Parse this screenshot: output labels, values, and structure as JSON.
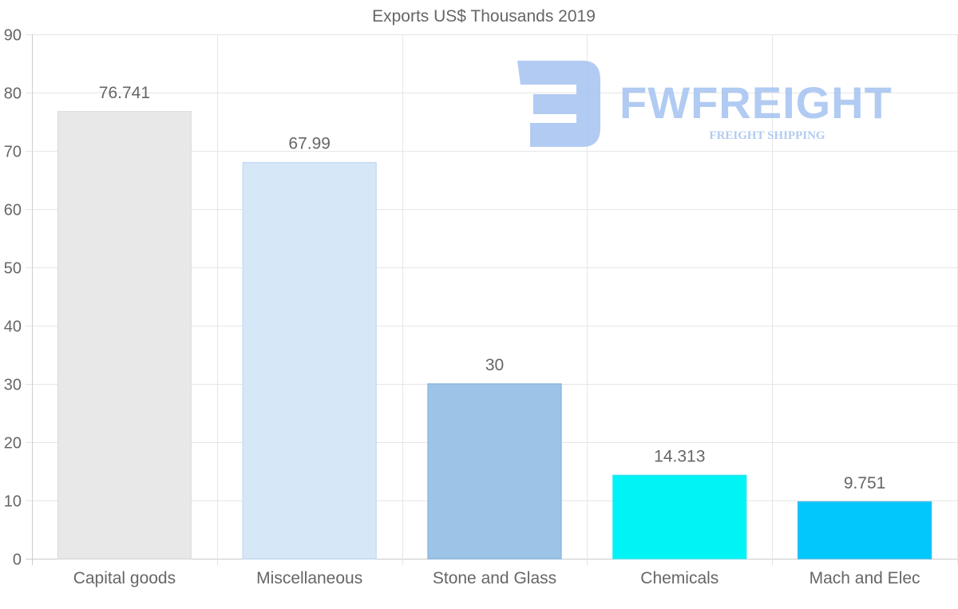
{
  "chart_data": {
    "type": "bar",
    "title": "Exports US$ Thousands 2019",
    "categories": [
      "Capital goods",
      "Miscellaneous",
      "Stone and Glass",
      "Chemicals",
      "Mach and Elec"
    ],
    "values": [
      76.741,
      67.99,
      30,
      14.313,
      9.751
    ],
    "value_labels": [
      "76.741",
      "67.99",
      "30",
      "14.313",
      "9.751"
    ],
    "colors": [
      "#e8e8e8",
      "#d6e7f8",
      "#9cc4e7",
      "#00f4f6",
      "#00c8fd"
    ],
    "border_colors": [
      "#e0e0e0",
      "#c7ddf5",
      "#8db8e0",
      "#33e6f0",
      "#33c0f0"
    ],
    "ylim": [
      0,
      90
    ],
    "y_ticks": [
      0,
      10,
      20,
      30,
      40,
      50,
      60,
      70,
      80,
      90
    ],
    "xlabel": "",
    "ylabel": "",
    "grid": true,
    "legend": "none"
  },
  "watermark": {
    "brand": "FWFREIGHT",
    "tagline": "FREIGHT SHIPPING",
    "color": "#a4c2f0"
  }
}
